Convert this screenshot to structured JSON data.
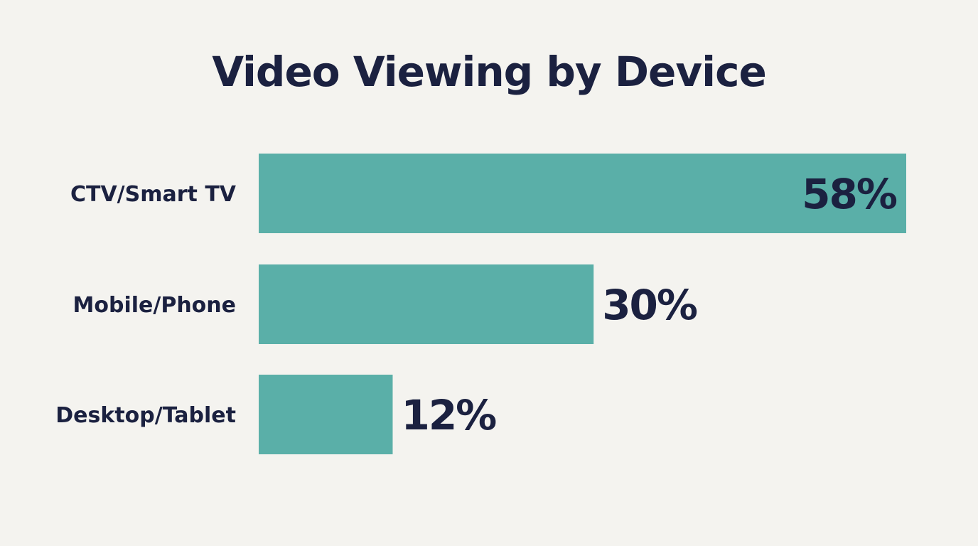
{
  "chart_data": {
    "type": "bar",
    "orientation": "horizontal",
    "title": "Video Viewing by Device",
    "categories": [
      "CTV/Smart TV",
      "Mobile/Phone",
      "Desktop/Tablet"
    ],
    "values": [
      58,
      30,
      12
    ],
    "value_labels": [
      "58%",
      "30%",
      "12%"
    ],
    "unit": "%",
    "xlim": [
      0,
      58
    ],
    "grid": false,
    "legend": "none",
    "colors": {
      "bar": "#5aafa8",
      "text": "#1b2140",
      "background": "#f4f3ef"
    }
  }
}
